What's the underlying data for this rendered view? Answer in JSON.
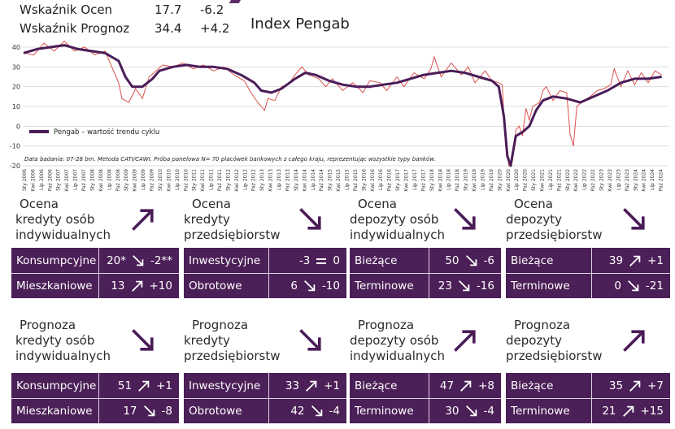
{
  "header": {
    "row1": {
      "label": "Wskaźnik Ocen",
      "value": "17.7",
      "change": "-6.2"
    },
    "row2": {
      "label": "Wskaźnik Prognoz",
      "value": "34.4",
      "change": "+4.2"
    }
  },
  "chart_data": {
    "type": "line",
    "title": "Index Pengab",
    "legend": "Pengab – wartość trendu cyklu",
    "note": "Data badania: 07-28 bm. Metoda CATI/CAWI. Próba panelowa N= 70 placówek bankowych z całego kraju, reprezentując wszystkie typy banków.",
    "ylim": [
      -20,
      40
    ],
    "yticks": [
      -20,
      -10,
      0,
      10,
      20,
      30,
      40
    ],
    "years": [
      2006,
      2007,
      2008,
      2009,
      2010,
      2011,
      2012,
      2013,
      2014,
      2015,
      2016,
      2017,
      2018,
      2019,
      2020,
      2021,
      2022,
      2023,
      2024
    ],
    "x_tick_labels": [
      "Sty",
      "Kwi",
      "Lip",
      "Paź"
    ],
    "trend_annual": [
      36,
      41,
      37,
      22,
      30,
      29,
      25,
      17,
      25,
      20,
      21,
      23,
      28,
      24,
      -20,
      13,
      15,
      23,
      25
    ],
    "trend_points": [
      [
        2006.0,
        37
      ],
      [
        2006.4,
        39
      ],
      [
        2006.8,
        40
      ],
      [
        2007.2,
        41
      ],
      [
        2007.6,
        39
      ],
      [
        2008.0,
        38
      ],
      [
        2008.4,
        37
      ],
      [
        2008.8,
        33
      ],
      [
        2009.0,
        25
      ],
      [
        2009.2,
        20
      ],
      [
        2009.5,
        20
      ],
      [
        2009.8,
        24
      ],
      [
        2010.0,
        28
      ],
      [
        2010.4,
        30
      ],
      [
        2010.8,
        31
      ],
      [
        2011.2,
        30
      ],
      [
        2011.6,
        30
      ],
      [
        2012.0,
        29
      ],
      [
        2012.4,
        26
      ],
      [
        2012.8,
        22
      ],
      [
        2013.0,
        18
      ],
      [
        2013.3,
        17
      ],
      [
        2013.6,
        19
      ],
      [
        2014.0,
        24
      ],
      [
        2014.3,
        27
      ],
      [
        2014.6,
        26
      ],
      [
        2015.0,
        23
      ],
      [
        2015.4,
        21
      ],
      [
        2015.8,
        20
      ],
      [
        2016.2,
        20
      ],
      [
        2016.6,
        21
      ],
      [
        2017.0,
        22
      ],
      [
        2017.4,
        24
      ],
      [
        2017.8,
        26
      ],
      [
        2018.2,
        27
      ],
      [
        2018.6,
        28
      ],
      [
        2019.0,
        27
      ],
      [
        2019.4,
        25
      ],
      [
        2019.8,
        23
      ],
      [
        2020.0,
        20
      ],
      [
        2020.15,
        5
      ],
      [
        2020.25,
        -15
      ],
      [
        2020.35,
        -20
      ],
      [
        2020.5,
        -5
      ],
      [
        2020.7,
        -3
      ],
      [
        2020.9,
        0
      ],
      [
        2021.1,
        8
      ],
      [
        2021.3,
        13
      ],
      [
        2021.6,
        15
      ],
      [
        2022.0,
        14
      ],
      [
        2022.4,
        12
      ],
      [
        2022.8,
        15
      ],
      [
        2023.2,
        18
      ],
      [
        2023.6,
        22
      ],
      [
        2024.0,
        24
      ],
      [
        2024.4,
        24
      ],
      [
        2024.8,
        25
      ]
    ],
    "raw_points": [
      [
        2006.0,
        37
      ],
      [
        2006.3,
        36
      ],
      [
        2006.6,
        42
      ],
      [
        2006.9,
        38
      ],
      [
        2007.2,
        43
      ],
      [
        2007.5,
        38
      ],
      [
        2007.8,
        40
      ],
      [
        2008.1,
        36
      ],
      [
        2008.4,
        38
      ],
      [
        2008.6,
        30
      ],
      [
        2008.8,
        22
      ],
      [
        2008.9,
        14
      ],
      [
        2009.1,
        12
      ],
      [
        2009.3,
        19
      ],
      [
        2009.5,
        14
      ],
      [
        2009.7,
        25
      ],
      [
        2009.9,
        28
      ],
      [
        2010.1,
        31
      ],
      [
        2010.4,
        30
      ],
      [
        2010.7,
        32
      ],
      [
        2011.0,
        29
      ],
      [
        2011.3,
        31
      ],
      [
        2011.6,
        28
      ],
      [
        2011.9,
        30
      ],
      [
        2012.2,
        26
      ],
      [
        2012.5,
        23
      ],
      [
        2012.7,
        17
      ],
      [
        2012.9,
        12
      ],
      [
        2013.1,
        8
      ],
      [
        2013.2,
        14
      ],
      [
        2013.4,
        13
      ],
      [
        2013.6,
        20
      ],
      [
        2013.8,
        21
      ],
      [
        2014.0,
        26
      ],
      [
        2014.2,
        30
      ],
      [
        2014.4,
        26
      ],
      [
        2014.7,
        24
      ],
      [
        2014.9,
        20
      ],
      [
        2015.1,
        24
      ],
      [
        2015.4,
        18
      ],
      [
        2015.7,
        22
      ],
      [
        2016.0,
        17
      ],
      [
        2016.2,
        23
      ],
      [
        2016.5,
        22
      ],
      [
        2016.7,
        18
      ],
      [
        2017.0,
        25
      ],
      [
        2017.2,
        20
      ],
      [
        2017.5,
        27
      ],
      [
        2017.8,
        24
      ],
      [
        2018.0,
        29
      ],
      [
        2018.1,
        35
      ],
      [
        2018.3,
        25
      ],
      [
        2018.6,
        32
      ],
      [
        2018.9,
        26
      ],
      [
        2019.1,
        30
      ],
      [
        2019.3,
        22
      ],
      [
        2019.6,
        28
      ],
      [
        2019.8,
        23
      ],
      [
        2020.0,
        22
      ],
      [
        2020.1,
        21
      ],
      [
        2020.2,
        -10
      ],
      [
        2020.3,
        -20
      ],
      [
        2020.4,
        -18
      ],
      [
        2020.5,
        -2
      ],
      [
        2020.6,
        0
      ],
      [
        2020.7,
        -5
      ],
      [
        2020.8,
        9
      ],
      [
        2020.9,
        3
      ],
      [
        2021.0,
        10
      ],
      [
        2021.2,
        12
      ],
      [
        2021.3,
        18
      ],
      [
        2021.4,
        20
      ],
      [
        2021.6,
        13
      ],
      [
        2021.8,
        18
      ],
      [
        2022.0,
        17
      ],
      [
        2022.1,
        -4
      ],
      [
        2022.2,
        -10
      ],
      [
        2022.3,
        10
      ],
      [
        2022.5,
        13
      ],
      [
        2022.7,
        15
      ],
      [
        2022.9,
        18
      ],
      [
        2023.1,
        19
      ],
      [
        2023.3,
        21
      ],
      [
        2023.4,
        29
      ],
      [
        2023.6,
        20
      ],
      [
        2023.8,
        28
      ],
      [
        2024.0,
        21
      ],
      [
        2024.2,
        27
      ],
      [
        2024.4,
        22
      ],
      [
        2024.6,
        28
      ],
      [
        2024.8,
        26
      ]
    ]
  },
  "ocena": [
    {
      "title": [
        "Ocena",
        "kredyty osób",
        "indywidualnych"
      ],
      "arrow": "up",
      "rows": [
        {
          "label": "Konsumpcyjne",
          "v1": "20*",
          "dir": "down",
          "v2": "-2**"
        },
        {
          "label": "Mieszkaniowe",
          "v1": "13",
          "dir": "up",
          "v2": "+10"
        }
      ]
    },
    {
      "title": [
        "Ocena",
        "kredyty",
        "przedsiębiorstw"
      ],
      "arrow": "down",
      "rows": [
        {
          "label": "Inwestycyjne",
          "v1": "-3",
          "dir": "eq",
          "v2": "0"
        },
        {
          "label": "Obrotowe",
          "v1": "6",
          "dir": "down",
          "v2": "-10"
        }
      ]
    },
    {
      "title": [
        "Ocena",
        "depozyty osób",
        "indywidualnych"
      ],
      "arrow": "down",
      "rows": [
        {
          "label": "Bieżące",
          "v1": "50",
          "dir": "down",
          "v2": "-6"
        },
        {
          "label": "Terminowe",
          "v1": "23",
          "dir": "down",
          "v2": "-16"
        }
      ]
    },
    {
      "title": [
        "Ocena",
        "depozyty",
        "przedsiębiorstw"
      ],
      "arrow": "down",
      "rows": [
        {
          "label": "Bieżące",
          "v1": "39",
          "dir": "up",
          "v2": "+1"
        },
        {
          "label": "Terminowe",
          "v1": "0",
          "dir": "down",
          "v2": "-21"
        }
      ]
    }
  ],
  "prognoza": [
    {
      "title": [
        "Prognoza",
        "kredyty osób",
        "indywidualnych"
      ],
      "arrow": "down",
      "rows": [
        {
          "label": "Konsumpcyjne",
          "v1": "51",
          "dir": "up",
          "v2": "+1"
        },
        {
          "label": "Mieszkaniowe",
          "v1": "17",
          "dir": "down",
          "v2": "-8"
        }
      ]
    },
    {
      "title": [
        "Prognoza",
        "kredyty",
        "przedsiębiorstw"
      ],
      "arrow": "down",
      "rows": [
        {
          "label": "Inwestycyjne",
          "v1": "33",
          "dir": "up",
          "v2": "+1"
        },
        {
          "label": "Obrotowe",
          "v1": "42",
          "dir": "down",
          "v2": "-4"
        }
      ]
    },
    {
      "title": [
        "Prognoza",
        "depozyty osób",
        "indywidualnych"
      ],
      "arrow": "up",
      "rows": [
        {
          "label": "Bieżące",
          "v1": "47",
          "dir": "up",
          "v2": "+8"
        },
        {
          "label": "Terminowe",
          "v1": "30",
          "dir": "down",
          "v2": "-4"
        }
      ]
    },
    {
      "title": [
        "Prognoza",
        "depozyty",
        "przedsiębiorstw"
      ],
      "arrow": "up",
      "rows": [
        {
          "label": "Bieżące",
          "v1": "35",
          "dir": "up",
          "v2": "+7"
        },
        {
          "label": "Terminowe",
          "v1": "21",
          "dir": "up",
          "v2": "+15"
        }
      ]
    }
  ]
}
